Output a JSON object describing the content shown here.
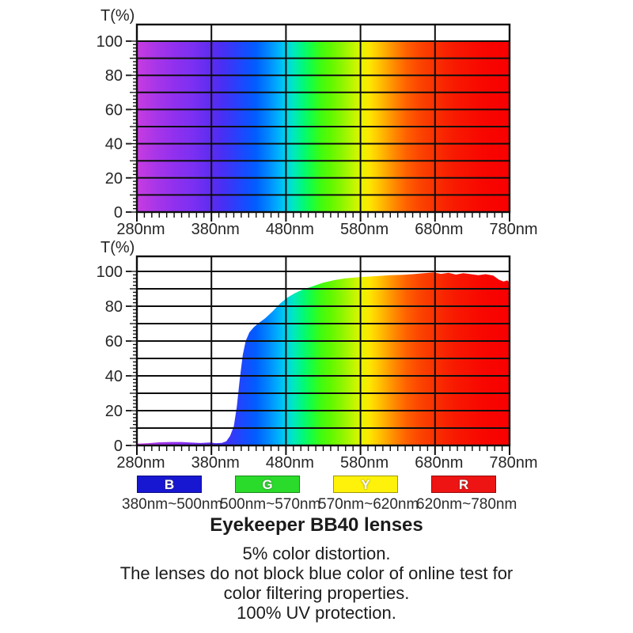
{
  "page": {
    "background": "#ffffff",
    "grid_color": "#0d0d0d",
    "text_color": "#1b1b1b"
  },
  "spectrum_gradient": [
    [
      280,
      "#c83ce0"
    ],
    [
      305,
      "#a936e8"
    ],
    [
      330,
      "#9130ee"
    ],
    [
      355,
      "#7b30f2"
    ],
    [
      380,
      "#5d2cf0"
    ],
    [
      395,
      "#482ff4"
    ],
    [
      410,
      "#303cfa"
    ],
    [
      425,
      "#164bff"
    ],
    [
      440,
      "#005eff"
    ],
    [
      455,
      "#0084ff"
    ],
    [
      467,
      "#00a8ff"
    ],
    [
      478,
      "#00ccee"
    ],
    [
      490,
      "#00e8c0"
    ],
    [
      502,
      "#00f77e"
    ],
    [
      514,
      "#16ff42"
    ],
    [
      526,
      "#3cfc12"
    ],
    [
      540,
      "#60f800"
    ],
    [
      555,
      "#8cf600"
    ],
    [
      570,
      "#bcf600"
    ],
    [
      582,
      "#e8f400"
    ],
    [
      592,
      "#fee600"
    ],
    [
      602,
      "#ffcc00"
    ],
    [
      614,
      "#ffaa00"
    ],
    [
      626,
      "#ff8800"
    ],
    [
      642,
      "#ff6000"
    ],
    [
      660,
      "#fb4400"
    ],
    [
      680,
      "#f93000"
    ],
    [
      705,
      "#f81a00"
    ],
    [
      745,
      "#f80600"
    ],
    [
      780,
      "#f80000"
    ]
  ],
  "chart_data": [
    {
      "id": "full-spectrum",
      "type": "area",
      "ylabel": "T(%)",
      "x_min": 280,
      "x_max": 780,
      "x_tick_labels": [
        "280nm",
        "380nm",
        "480nm",
        "580nm",
        "680nm",
        "780nm"
      ],
      "x_tick_step_nm": 100,
      "x_minor_tick_step_nm": 10,
      "y_tick_labels": [
        0,
        20,
        40,
        60,
        80,
        100
      ],
      "y_gridline_step": 10,
      "y_minor_tick_step": 2,
      "ylim": [
        0,
        110
      ],
      "grid": true,
      "curve": [
        [
          280,
          100
        ],
        [
          780,
          100
        ]
      ]
    },
    {
      "id": "bb40-lens-transmission",
      "type": "area",
      "ylabel": "T(%)",
      "x_min": 280,
      "x_max": 780,
      "x_tick_labels": [
        "280nm",
        "380nm",
        "480nm",
        "580nm",
        "680nm",
        "780nm"
      ],
      "x_tick_step_nm": 100,
      "x_minor_tick_step_nm": 10,
      "y_tick_labels": [
        0,
        20,
        40,
        60,
        80,
        100
      ],
      "y_gridline_step": 10,
      "y_minor_tick_step": 2,
      "ylim": [
        0,
        110
      ],
      "grid": true,
      "curve": [
        [
          280,
          1
        ],
        [
          295,
          1.3
        ],
        [
          310,
          1.8
        ],
        [
          325,
          2
        ],
        [
          340,
          2
        ],
        [
          352,
          1.7
        ],
        [
          365,
          1.4
        ],
        [
          378,
          1.7
        ],
        [
          386,
          1.3
        ],
        [
          394,
          1.5
        ],
        [
          400,
          2.4
        ],
        [
          405,
          5.5
        ],
        [
          410,
          11
        ],
        [
          414,
          22
        ],
        [
          418,
          38
        ],
        [
          422,
          52
        ],
        [
          426,
          60
        ],
        [
          431,
          65
        ],
        [
          437,
          68
        ],
        [
          444,
          70.5
        ],
        [
          452,
          73
        ],
        [
          462,
          77
        ],
        [
          472,
          81.5
        ],
        [
          482,
          85
        ],
        [
          492,
          87.5
        ],
        [
          502,
          89.5
        ],
        [
          516,
          91.5
        ],
        [
          530,
          93.5
        ],
        [
          545,
          95
        ],
        [
          560,
          96
        ],
        [
          575,
          96.6
        ],
        [
          590,
          97
        ],
        [
          605,
          97.4
        ],
        [
          620,
          97.8
        ],
        [
          635,
          98
        ],
        [
          650,
          98.4
        ],
        [
          665,
          99
        ],
        [
          678,
          99.4
        ],
        [
          688,
          98.6
        ],
        [
          698,
          99.2
        ],
        [
          708,
          98.2
        ],
        [
          718,
          99
        ],
        [
          728,
          98.4
        ],
        [
          738,
          97.8
        ],
        [
          748,
          98.4
        ],
        [
          758,
          97.6
        ],
        [
          766,
          95.2
        ],
        [
          772,
          94.2
        ],
        [
          777,
          94.8
        ],
        [
          780,
          93.5
        ]
      ]
    }
  ],
  "legend": {
    "items": [
      {
        "letter": "B",
        "range": "380nm~500nm",
        "color": "#1717d2",
        "letter_color": "#ffffff"
      },
      {
        "letter": "G",
        "range": "500nm~570nm",
        "color": "#2bdb2b",
        "letter_color": "#ffffff"
      },
      {
        "letter": "Y",
        "range": "570nm~620nm",
        "color": "#fff20a",
        "letter_color": "#ffffff"
      },
      {
        "letter": "R",
        "range": "620nm~780nm",
        "color": "#ee1414",
        "letter_color": "#ffffff"
      }
    ]
  },
  "caption": {
    "title": "Eyekeeper BB40 lenses",
    "lines": [
      "5% color distortion.",
      "The lenses do not block blue color of online test for",
      "color filtering properties.",
      "100% UV protection."
    ]
  }
}
